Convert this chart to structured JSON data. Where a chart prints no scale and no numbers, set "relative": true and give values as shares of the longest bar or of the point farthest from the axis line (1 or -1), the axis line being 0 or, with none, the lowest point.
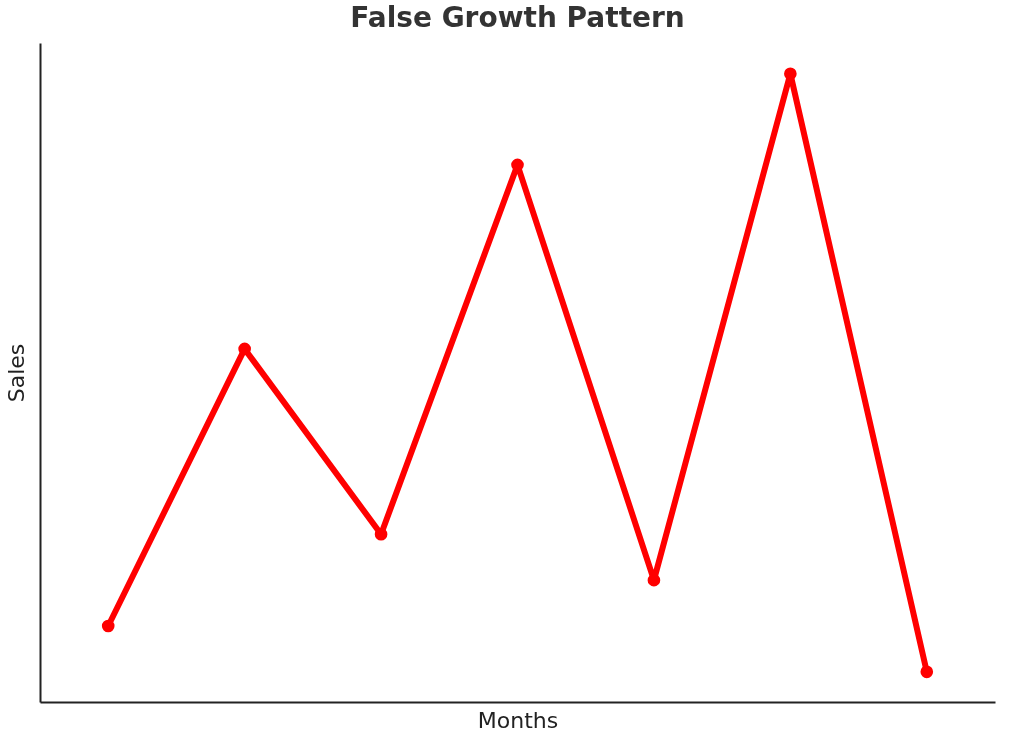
{
  "chart_data": {
    "type": "line",
    "title": "False Growth Pattern",
    "xlabel": "Months",
    "ylabel": "Sales",
    "relative": true,
    "categories": [
      null,
      null,
      null,
      null,
      null,
      null,
      null
    ],
    "series": [
      {
        "color": "#ff0000",
        "values": [
          0.121,
          0.562,
          0.267,
          0.855,
          0.194,
          1.0,
          0.048
        ]
      }
    ],
    "marker": "circle",
    "line_style": "solid",
    "grid": false,
    "tick_labels": false
  }
}
